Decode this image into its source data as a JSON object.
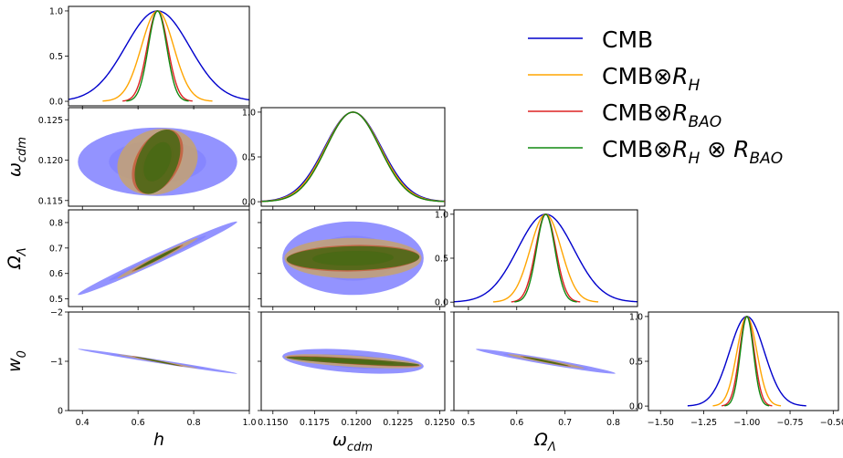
{
  "chart_data": {
    "type": "corner",
    "parameters": [
      "h",
      "omega_cdm",
      "Omega_Lambda",
      "w_0"
    ],
    "axis_labels": {
      "h": "h",
      "omega_cdm": "ω_cdm",
      "Omega_Lambda": "Ω_Λ",
      "w_0": "w_0"
    },
    "series": [
      {
        "name": "CMB",
        "color": "#0000cc",
        "fill": "#7b7bff",
        "mean": {
          "h": 0.67,
          "omega_cdm": 0.1198,
          "Omega_Lambda": 0.66,
          "w_0": -1.0
        },
        "sigma": {
          "h": 0.115,
          "omega_cdm": 0.0017,
          "Omega_Lambda": 0.058,
          "w_0": 0.101
        },
        "correlation": {
          "h|omega_cdm": 0.0,
          "h|Omega_Lambda": 0.99,
          "h|w_0": 0.99,
          "omega_cdm|Omega_Lambda": 0.0,
          "omega_cdm|w_0": 0.4,
          "Omega_Lambda|w_0": 0.97
        }
      },
      {
        "name": "CMB⊗R_H",
        "color": "#ffa500",
        "fill": "#c8a46a",
        "mean": {
          "h": 0.67,
          "omega_cdm": 0.1198,
          "Omega_Lambda": 0.66,
          "w_0": -1.0
        },
        "sigma": {
          "h": 0.058,
          "omega_cdm": 0.00165,
          "Omega_Lambda": 0.032,
          "w_0": 0.058
        },
        "correlation": {
          "h|omega_cdm": 0.15,
          "h|Omega_Lambda": 0.99,
          "h|w_0": 0.99,
          "omega_cdm|Omega_Lambda": 0.0,
          "omega_cdm|w_0": 0.6,
          "Omega_Lambda|w_0": 0.97
        }
      },
      {
        "name": "CMB⊗R_BAO",
        "color": "#dd2222",
        "fill": "#c45a3a",
        "mean": {
          "h": 0.67,
          "omega_cdm": 0.1198,
          "Omega_Lambda": 0.66,
          "w_0": -1.0
        },
        "sigma": {
          "h": 0.037,
          "omega_cdm": 0.0016,
          "Omega_Lambda": 0.021,
          "w_0": 0.043
        },
        "correlation": {
          "h|omega_cdm": 0.4,
          "h|Omega_Lambda": 0.99,
          "h|w_0": 0.99,
          "omega_cdm|Omega_Lambda": 0.1,
          "omega_cdm|w_0": 0.8,
          "Omega_Lambda|w_0": 0.98
        }
      },
      {
        "name": "CMB⊗R_H ⊗ R_BAO",
        "color": "#118811",
        "fill": "#3f6a12",
        "mean": {
          "h": 0.67,
          "omega_cdm": 0.1198,
          "Omega_Lambda": 0.66,
          "w_0": -1.0
        },
        "sigma": {
          "h": 0.033,
          "omega_cdm": 0.0016,
          "Omega_Lambda": 0.019,
          "w_0": 0.038
        },
        "correlation": {
          "h|omega_cdm": 0.4,
          "h|Omega_Lambda": 0.99,
          "h|w_0": 0.99,
          "omega_cdm|Omega_Lambda": 0.1,
          "omega_cdm|w_0": 0.8,
          "Omega_Lambda|w_0": 0.98
        }
      }
    ],
    "axes": {
      "h": {
        "range": [
          0.35,
          1.0
        ],
        "ticks": [
          0.4,
          0.6,
          0.8,
          1.0
        ],
        "tick_labels": [
          "0.4",
          "0.6",
          "0.8",
          "1.0"
        ]
      },
      "omega_cdm": {
        "range": [
          0.1143,
          0.1253
        ],
        "ticks": [
          0.115,
          0.1175,
          0.12,
          0.1225,
          0.125
        ],
        "tick_labels": [
          "0.1150",
          "0.1175",
          "0.1200",
          "0.1225",
          "0.1250"
        ]
      },
      "Omega_Lambda": {
        "range": [
          0.47,
          0.85
        ],
        "ticks": [
          0.5,
          0.6,
          0.7,
          0.8
        ],
        "tick_labels": [
          "0.5",
          "0.6",
          "0.7",
          "0.8"
        ]
      },
      "w_0": {
        "range": [
          -1.57,
          -0.47
        ],
        "ticks": [
          -1.5,
          -1.25,
          -1.0,
          -0.75,
          -0.5
        ],
        "tick_labels": [
          "−1.50",
          "−1.25",
          "−1.00",
          "−0.75",
          "−0.50"
        ]
      }
    },
    "row_axes": {
      "omega_cdm": {
        "range": [
          0.1143,
          0.1265
        ],
        "ticks": [
          0.115,
          0.12,
          0.125
        ],
        "tick_labels": [
          "0.115",
          "0.120",
          "0.125"
        ]
      },
      "Omega_Lambda": {
        "range": [
          0.47,
          0.85
        ],
        "ticks": [
          0.5,
          0.6,
          0.7,
          0.8
        ],
        "tick_labels": [
          "0.5",
          "0.6",
          "0.7",
          "0.8"
        ]
      },
      "w_0": {
        "range": [
          0.0,
          -2.0
        ],
        "ticks": [
          -2,
          -1,
          0
        ],
        "tick_labels": [
          "−2",
          "−1",
          "0"
        ]
      }
    },
    "diag_ticks": {
      "values": [
        0.0,
        0.5,
        1.0
      ],
      "labels": [
        "0.0",
        "0.5",
        "1.0"
      ]
    },
    "legend_placement": "top-right",
    "grid": false
  }
}
